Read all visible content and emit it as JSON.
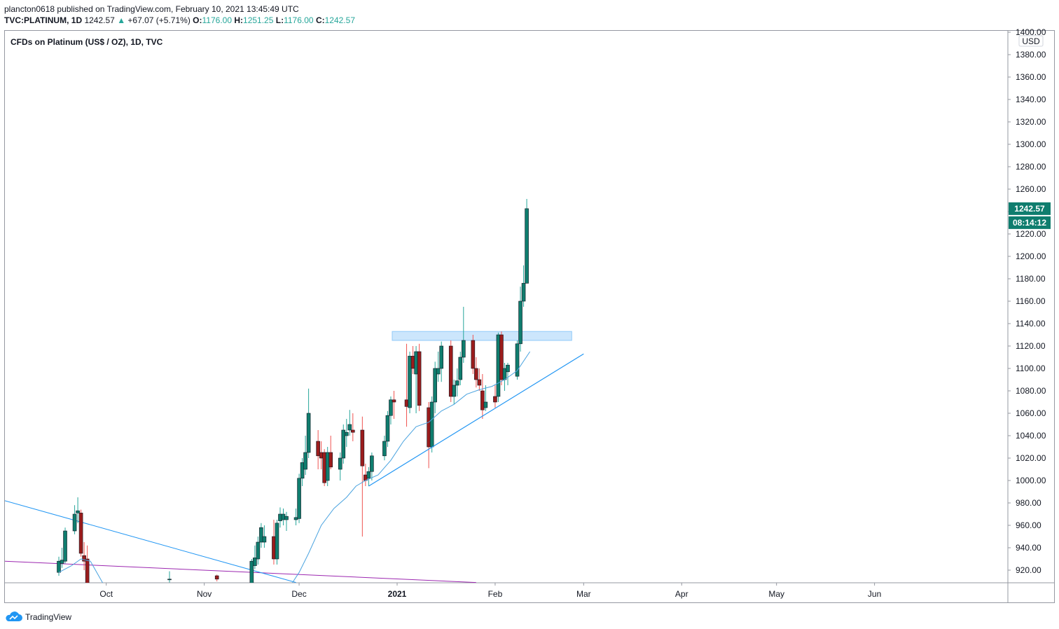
{
  "header": {
    "publisher_line": "plancton0618 published on TradingView.com, February 10, 2021 13:45:49 UTC",
    "symbol": "TVC:PLATINUM, 1D",
    "last": "1242.57",
    "change_arrow": "▲",
    "change": "+67.07 (+5.71%)",
    "o_label": "O:",
    "o_value": "1176.00",
    "h_label": "H:",
    "h_value": "1251.25",
    "l_label": "L:",
    "l_value": "1176.00",
    "c_label": "C:",
    "c_value": "1242.57"
  },
  "legend": {
    "title": "CFDs on Platinum (US$ / OZ), 1D, TVC"
  },
  "price_axis": {
    "currency": "USD",
    "last_price_label": "1242.57",
    "countdown_label": "08:14:12",
    "ticks": [
      "1400.00",
      "1380.00",
      "1360.00",
      "1340.00",
      "1320.00",
      "1300.00",
      "1280.00",
      "1260.00",
      "1240.00",
      "1220.00",
      "1200.00",
      "1180.00",
      "1160.00",
      "1140.00",
      "1120.00",
      "1100.00",
      "1080.00",
      "1060.00",
      "1040.00",
      "1020.00",
      "1000.00",
      "980.00",
      "960.00",
      "940.00",
      "920.00"
    ]
  },
  "time_axis": {
    "labels": [
      "Oct",
      "Nov",
      "Dec",
      "2021",
      "Feb",
      "Mar",
      "Apr",
      "May",
      "Jun"
    ]
  },
  "footer": {
    "brand": "TradingView",
    "brand_icon": "tradingview-cloud-icon"
  },
  "colors": {
    "up": "#26a69a",
    "down": "#ef5350",
    "up_body": "#0f7d6e",
    "down_body": "#9b1c1c",
    "accent": "#2196f3",
    "ma": "#4aa3df",
    "purple": "#9c27b0",
    "zone": "#bbdefb",
    "price_box": "#0f7d6e"
  },
  "chart_data": {
    "type": "candlestick",
    "title": "CFDs on Platinum (US$ / OZ), 1D, TVC",
    "ylim": [
      910,
      1400
    ],
    "y_ticks": [
      1400,
      1380,
      1360,
      1340,
      1320,
      1300,
      1280,
      1260,
      1240,
      1220,
      1200,
      1180,
      1160,
      1140,
      1120,
      1100,
      1080,
      1060,
      1040,
      1020,
      1000,
      980,
      960,
      940,
      920
    ],
    "x_labels": [
      "Oct",
      "Nov",
      "Dec",
      "2021",
      "Feb",
      "Mar",
      "Apr",
      "May",
      "Jun"
    ],
    "last_price": 1242.57,
    "countdown": "08:14:12",
    "candles": [
      {
        "date": "2020-09-16",
        "o": 918,
        "h": 932,
        "l": 915,
        "c": 928
      },
      {
        "date": "2020-09-17",
        "o": 926,
        "h": 940,
        "l": 922,
        "c": 929
      },
      {
        "date": "2020-09-18",
        "o": 928,
        "h": 958,
        "l": 926,
        "c": 955
      },
      {
        "date": "2020-09-21",
        "o": 955,
        "h": 978,
        "l": 952,
        "c": 970
      },
      {
        "date": "2020-09-22",
        "o": 971,
        "h": 985,
        "l": 962,
        "c": 973
      },
      {
        "date": "2020-09-23",
        "o": 971,
        "h": 974,
        "l": 932,
        "c": 935
      },
      {
        "date": "2020-09-24",
        "o": 933,
        "h": 945,
        "l": 920,
        "c": 928
      },
      {
        "date": "2020-09-25",
        "o": 930,
        "h": 942,
        "l": 900,
        "c": 905
      },
      {
        "date": "2020-10-21",
        "o": 912,
        "h": 919,
        "l": 909,
        "c": 912
      },
      {
        "date": "2020-11-05",
        "o": 915,
        "h": 916,
        "l": 910,
        "c": 912
      },
      {
        "date": "2020-11-16",
        "o": 905,
        "h": 930,
        "l": 900,
        "c": 928
      },
      {
        "date": "2020-11-17",
        "o": 924,
        "h": 942,
        "l": 921,
        "c": 931
      },
      {
        "date": "2020-11-18",
        "o": 930,
        "h": 950,
        "l": 925,
        "c": 945
      },
      {
        "date": "2020-11-19",
        "o": 945,
        "h": 962,
        "l": 940,
        "c": 958
      },
      {
        "date": "2020-11-20",
        "o": 945,
        "h": 960,
        "l": 940,
        "c": 950
      },
      {
        "date": "2020-11-23",
        "o": 950,
        "h": 965,
        "l": 925,
        "c": 930
      },
      {
        "date": "2020-11-24",
        "o": 930,
        "h": 965,
        "l": 925,
        "c": 962
      },
      {
        "date": "2020-11-25",
        "o": 964,
        "h": 976,
        "l": 958,
        "c": 970
      },
      {
        "date": "2020-11-26",
        "o": 965,
        "h": 975,
        "l": 960,
        "c": 970
      },
      {
        "date": "2020-11-27",
        "o": 965,
        "h": 972,
        "l": 955,
        "c": 968
      },
      {
        "date": "2020-11-30",
        "o": 965,
        "h": 975,
        "l": 960,
        "c": 967
      },
      {
        "date": "2020-12-01",
        "o": 966,
        "h": 1006,
        "l": 962,
        "c": 1002
      },
      {
        "date": "2020-12-02",
        "o": 1002,
        "h": 1020,
        "l": 995,
        "c": 1016
      },
      {
        "date": "2020-12-03",
        "o": 1010,
        "h": 1040,
        "l": 1005,
        "c": 1025
      },
      {
        "date": "2020-12-04",
        "o": 1025,
        "h": 1082,
        "l": 1020,
        "c": 1060
      },
      {
        "date": "2020-12-07",
        "o": 1035,
        "h": 1045,
        "l": 1010,
        "c": 1022
      },
      {
        "date": "2020-12-08",
        "o": 1025,
        "h": 1035,
        "l": 1010,
        "c": 1020
      },
      {
        "date": "2020-12-09",
        "o": 1025,
        "h": 1028,
        "l": 995,
        "c": 998
      },
      {
        "date": "2020-12-10",
        "o": 1000,
        "h": 1030,
        "l": 995,
        "c": 1025
      },
      {
        "date": "2020-12-11",
        "o": 1025,
        "h": 1040,
        "l": 1010,
        "c": 1012
      },
      {
        "date": "2020-12-14",
        "o": 1010,
        "h": 1025,
        "l": 1000,
        "c": 1020
      },
      {
        "date": "2020-12-15",
        "o": 1020,
        "h": 1050,
        "l": 1015,
        "c": 1045
      },
      {
        "date": "2020-12-16",
        "o": 1040,
        "h": 1055,
        "l": 1030,
        "c": 1043
      },
      {
        "date": "2020-12-17",
        "o": 1045,
        "h": 1063,
        "l": 1040,
        "c": 1050
      },
      {
        "date": "2020-12-18",
        "o": 1045,
        "h": 1060,
        "l": 1035,
        "c": 1043
      },
      {
        "date": "2020-12-21",
        "o": 1045,
        "h": 1057,
        "l": 950,
        "c": 1013
      },
      {
        "date": "2020-12-22",
        "o": 1005,
        "h": 1015,
        "l": 995,
        "c": 1000
      },
      {
        "date": "2020-12-23",
        "o": 1002,
        "h": 1012,
        "l": 995,
        "c": 1008
      },
      {
        "date": "2020-12-24",
        "o": 1008,
        "h": 1025,
        "l": 1000,
        "c": 1022
      },
      {
        "date": "2020-12-28",
        "o": 1022,
        "h": 1040,
        "l": 1018,
        "c": 1035
      },
      {
        "date": "2020-12-29",
        "o": 1035,
        "h": 1062,
        "l": 1030,
        "c": 1058
      },
      {
        "date": "2020-12-30",
        "o": 1058,
        "h": 1075,
        "l": 1050,
        "c": 1072
      },
      {
        "date": "2020-12-31",
        "o": 1072,
        "h": 1080,
        "l": 1055,
        "c": 1070
      },
      {
        "date": "2021-01-04",
        "o": 1072,
        "h": 1122,
        "l": 1048,
        "c": 1066
      },
      {
        "date": "2021-01-05",
        "o": 1065,
        "h": 1115,
        "l": 1060,
        "c": 1111
      },
      {
        "date": "2021-01-06",
        "o": 1111,
        "h": 1120,
        "l": 1095,
        "c": 1100
      },
      {
        "date": "2021-01-07",
        "o": 1095,
        "h": 1120,
        "l": 1060,
        "c": 1115
      },
      {
        "date": "2021-01-08",
        "o": 1115,
        "h": 1122,
        "l": 1062,
        "c": 1067
      },
      {
        "date": "2021-01-11",
        "o": 1065,
        "h": 1070,
        "l": 1011,
        "c": 1030
      },
      {
        "date": "2021-01-12",
        "o": 1030,
        "h": 1075,
        "l": 1025,
        "c": 1070
      },
      {
        "date": "2021-01-13",
        "o": 1070,
        "h": 1106,
        "l": 1060,
        "c": 1100
      },
      {
        "date": "2021-01-14",
        "o": 1095,
        "h": 1115,
        "l": 1088,
        "c": 1100
      },
      {
        "date": "2021-01-15",
        "o": 1100,
        "h": 1124,
        "l": 1088,
        "c": 1120
      },
      {
        "date": "2021-01-18",
        "o": 1120,
        "h": 1125,
        "l": 1070,
        "c": 1075
      },
      {
        "date": "2021-01-19",
        "o": 1075,
        "h": 1090,
        "l": 1068,
        "c": 1085
      },
      {
        "date": "2021-01-20",
        "o": 1085,
        "h": 1100,
        "l": 1075,
        "c": 1089
      },
      {
        "date": "2021-01-21",
        "o": 1090,
        "h": 1115,
        "l": 1085,
        "c": 1110
      },
      {
        "date": "2021-01-22",
        "o": 1110,
        "h": 1155,
        "l": 1105,
        "c": 1125
      },
      {
        "date": "2021-01-25",
        "o": 1125,
        "h": 1130,
        "l": 1095,
        "c": 1100
      },
      {
        "date": "2021-01-26",
        "o": 1100,
        "h": 1110,
        "l": 1083,
        "c": 1090
      },
      {
        "date": "2021-01-27",
        "o": 1090,
        "h": 1100,
        "l": 1080,
        "c": 1085
      },
      {
        "date": "2021-01-28",
        "o": 1080,
        "h": 1095,
        "l": 1055,
        "c": 1063
      },
      {
        "date": "2021-01-29",
        "o": 1065,
        "h": 1085,
        "l": 1062,
        "c": 1070
      },
      {
        "date": "2021-02-01",
        "o": 1075,
        "h": 1085,
        "l": 1065,
        "c": 1070
      },
      {
        "date": "2021-02-02",
        "o": 1075,
        "h": 1132,
        "l": 1070,
        "c": 1130
      },
      {
        "date": "2021-02-03",
        "o": 1130,
        "h": 1133,
        "l": 1085,
        "c": 1090
      },
      {
        "date": "2021-02-04",
        "o": 1090,
        "h": 1105,
        "l": 1080,
        "c": 1100
      },
      {
        "date": "2021-02-05",
        "o": 1097,
        "h": 1105,
        "l": 1085,
        "c": 1103
      },
      {
        "date": "2021-02-08",
        "o": 1093,
        "h": 1125,
        "l": 1090,
        "c": 1122
      },
      {
        "date": "2021-02-09",
        "o": 1122,
        "h": 1173,
        "l": 1115,
        "c": 1160
      },
      {
        "date": "2021-02-10",
        "o": 1160,
        "h": 1192,
        "l": 1155,
        "c": 1176
      },
      {
        "date": "2021-02-11",
        "o": 1176,
        "h": 1251.25,
        "l": 1176,
        "c": 1242.57
      }
    ]
  }
}
